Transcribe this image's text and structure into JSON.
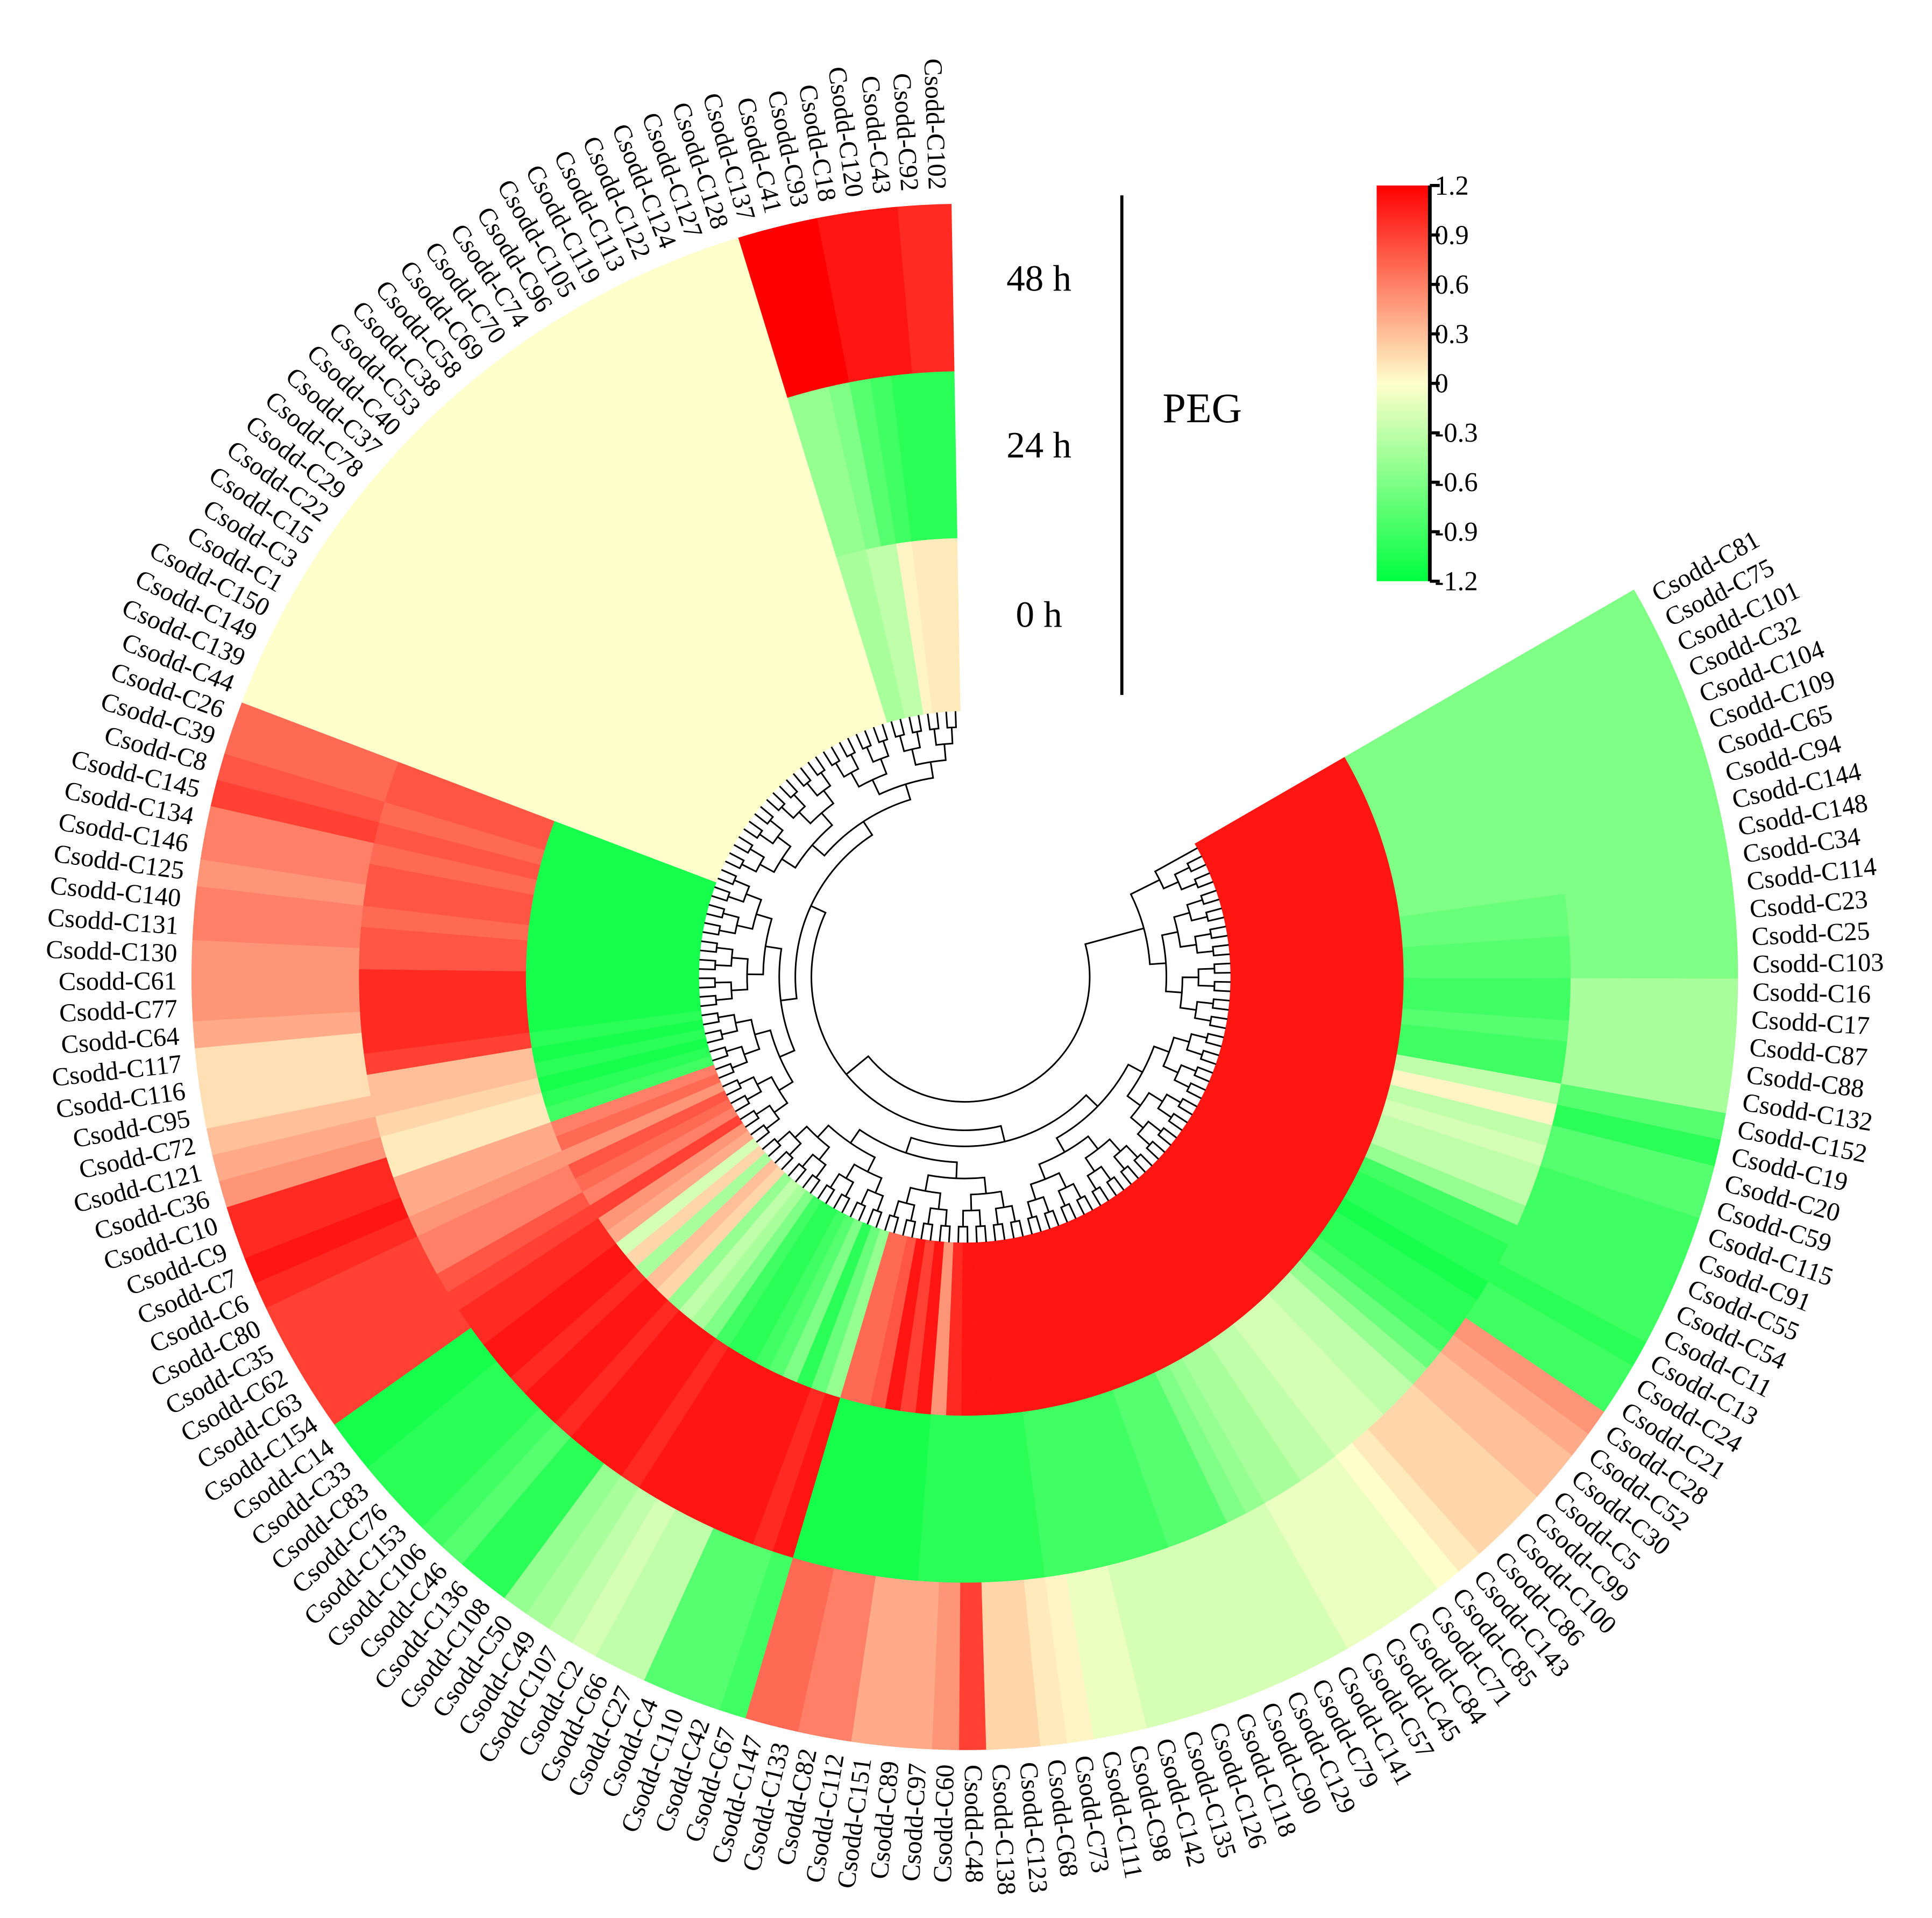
{
  "chart_data": {
    "type": "circular-heatmap",
    "group_label": "PEG",
    "categories": [
      "Csodd-C102",
      "Csodd-C92",
      "Csodd-C43",
      "Csodd-C120",
      "Csodd-C18",
      "Csodd-C93",
      "Csodd-C41",
      "Csodd-C137",
      "Csodd-C128",
      "Csodd-C127",
      "Csodd-C124",
      "Csodd-C122",
      "Csodd-C113",
      "Csodd-C119",
      "Csodd-C105",
      "Csodd-C96",
      "Csodd-C74",
      "Csodd-C70",
      "Csodd-C69",
      "Csodd-C58",
      "Csodd-C38",
      "Csodd-C53",
      "Csodd-C40",
      "Csodd-C37",
      "Csodd-C78",
      "Csodd-C29",
      "Csodd-C22",
      "Csodd-C15",
      "Csodd-C3",
      "Csodd-C1",
      "Csodd-C150",
      "Csodd-C149",
      "Csodd-C139",
      "Csodd-C44",
      "Csodd-C26",
      "Csodd-C39",
      "Csodd-C8",
      "Csodd-C145",
      "Csodd-C134",
      "Csodd-C146",
      "Csodd-C125",
      "Csodd-C140",
      "Csodd-C131",
      "Csodd-C130",
      "Csodd-C61",
      "Csodd-C77",
      "Csodd-C64",
      "Csodd-C117",
      "Csodd-C116",
      "Csodd-C95",
      "Csodd-C72",
      "Csodd-C121",
      "Csodd-C36",
      "Csodd-C10",
      "Csodd-C9",
      "Csodd-C7",
      "Csodd-C6",
      "Csodd-C80",
      "Csodd-C35",
      "Csodd-C62",
      "Csodd-C63",
      "Csodd-C154",
      "Csodd-C14",
      "Csodd-C33",
      "Csodd-C83",
      "Csodd-C76",
      "Csodd-C153",
      "Csodd-C106",
      "Csodd-C46",
      "Csodd-C136",
      "Csodd-C108",
      "Csodd-C50",
      "Csodd-C49",
      "Csodd-C107",
      "Csodd-C2",
      "Csodd-C66",
      "Csodd-C27",
      "Csodd-C4",
      "Csodd-C110",
      "Csodd-C42",
      "Csodd-C67",
      "Csodd-C147",
      "Csodd-C133",
      "Csodd-C82",
      "Csodd-C112",
      "Csodd-C151",
      "Csodd-C89",
      "Csodd-C97",
      "Csodd-C60",
      "Csodd-C48",
      "Csodd-C138",
      "Csodd-C123",
      "Csodd-C68",
      "Csodd-C73",
      "Csodd-C111",
      "Csodd-C98",
      "Csodd-C142",
      "Csodd-C135",
      "Csodd-C126",
      "Csodd-C118",
      "Csodd-C90",
      "Csodd-C129",
      "Csodd-C79",
      "Csodd-C141",
      "Csodd-C57",
      "Csodd-C45",
      "Csodd-C84",
      "Csodd-C71",
      "Csodd-C85",
      "Csodd-C143",
      "Csodd-C86",
      "Csodd-C100",
      "Csodd-C99",
      "Csodd-C5",
      "Csodd-C30",
      "Csodd-C52",
      "Csodd-C28",
      "Csodd-C21",
      "Csodd-C24",
      "Csodd-C13",
      "Csodd-C11",
      "Csodd-C54",
      "Csodd-C55",
      "Csodd-C91",
      "Csodd-C115",
      "Csodd-C59",
      "Csodd-C20",
      "Csodd-C19",
      "Csodd-C152",
      "Csodd-C132",
      "Csodd-C88",
      "Csodd-C87",
      "Csodd-C17",
      "Csodd-C16",
      "Csodd-C103",
      "Csodd-C25",
      "Csodd-C23",
      "Csodd-C114",
      "Csodd-C34",
      "Csodd-C148",
      "Csodd-C144",
      "Csodd-C94",
      "Csodd-C65",
      "Csodd-C109",
      "Csodd-C104",
      "Csodd-C32",
      "Csodd-C101",
      "Csodd-C75",
      "Csodd-C81"
    ],
    "series": [
      {
        "name": "0 h",
        "values": [
          0.1,
          0.1,
          0.1,
          0.05,
          -0.3,
          -0.3,
          -0.4,
          -0.4,
          0,
          0,
          0,
          0,
          0,
          0,
          0,
          0,
          0,
          0,
          0,
          0,
          0,
          0,
          0,
          0,
          0,
          0,
          0,
          0,
          0,
          0,
          0,
          0,
          0,
          0,
          -1.1,
          -1.1,
          -1.1,
          -1.1,
          -1.1,
          -1.1,
          -1.1,
          -1.1,
          -1.1,
          -1.1,
          -1.1,
          -1.1,
          -1.1,
          -1.1,
          -1.0,
          -1.1,
          -1.0,
          -1.1,
          -1.0,
          -0.9,
          0.6,
          0.7,
          0.5,
          0.8,
          0.7,
          0.6,
          0.9,
          0.5,
          0.4,
          -0.2,
          0.2,
          -0.4,
          0.3,
          0.2,
          -0.5,
          -0.3,
          -0.4,
          -0.6,
          -0.9,
          -1.0,
          -1.0,
          -0.9,
          -0.8,
          -0.6,
          -1.0,
          -0.7,
          -0.5,
          0.7,
          0.7,
          0.8,
          1.1,
          0.9,
          1.1,
          0.5,
          1.0,
          1.1,
          1.1,
          1.1,
          1.1,
          1.1,
          1.1,
          1.1,
          1.1,
          1.1,
          1.1,
          1.1,
          1.1,
          1.1,
          1.1,
          1.1,
          1.1,
          1.1,
          1.1,
          1.1,
          1.1,
          1.1,
          1.1,
          1.1,
          1.1,
          1.1,
          1.1,
          1.1,
          1.1,
          1.1,
          1.1,
          1.1,
          1.1,
          1.1,
          1.1,
          1.1,
          1.1,
          1.1,
          1.1,
          1.1,
          1.1,
          1.1,
          1.1,
          1.1,
          1.1,
          1.1,
          1.1,
          1.1,
          1.1,
          1.1,
          1.1,
          1.1,
          1.1,
          1.1,
          1.1,
          1.1,
          1.1,
          1.1,
          1.1,
          1.1,
          1.1
        ]
      },
      {
        "name": "24 h",
        "values": [
          -1.0,
          -1.0,
          -1.0,
          -0.9,
          -0.8,
          -0.6,
          -0.5,
          -0.5,
          0,
          0,
          0,
          0,
          0,
          0,
          0,
          0,
          0,
          0,
          0,
          0,
          0,
          0,
          0,
          0,
          0,
          0,
          0,
          0,
          0,
          0,
          0,
          0,
          0,
          0,
          0.8,
          0.8,
          0.7,
          0.8,
          0.7,
          0.8,
          0.8,
          0.7,
          0.8,
          0.8,
          1.0,
          1.0,
          1.0,
          1.0,
          0.9,
          0.3,
          0.3,
          0.2,
          0.1,
          0.1,
          0.4,
          0.4,
          0.5,
          0.6,
          0.6,
          0.8,
          0.9,
          1.0,
          1.0,
          1.1,
          1.1,
          1.0,
          1.1,
          1.1,
          1.0,
          1.1,
          1.1,
          1.1,
          1.0,
          1.1,
          1.1,
          1.1,
          1.1,
          1.1,
          1.1,
          1.0,
          1.1,
          -1.1,
          -1.1,
          -1.1,
          -1.1,
          -1.1,
          -1.1,
          -1.0,
          -1.0,
          -1.0,
          -1.0,
          -1.0,
          -1.0,
          -0.9,
          -0.9,
          -0.9,
          -0.9,
          -0.9,
          -0.9,
          -0.8,
          -0.8,
          -0.8,
          -0.6,
          -0.5,
          -0.4,
          -0.4,
          -0.3,
          -0.3,
          -0.2,
          -0.2,
          -0.2,
          -0.3,
          -0.3,
          -0.5,
          -0.7,
          -0.9,
          -1.0,
          -1.0,
          -1.1,
          -1.0,
          -1.0,
          -0.9,
          -0.5,
          -0.3,
          -0.3,
          -0.2,
          -0.3,
          0.05,
          -0.3,
          -0.9,
          -0.9,
          -0.8,
          -0.9,
          -0.9,
          -0.8,
          -0.8,
          -0.7,
          -0.7,
          -0.6,
          -0.6,
          -0.6,
          -0.6,
          -0.6,
          -0.6,
          -0.6,
          -0.6,
          -0.6,
          -0.6,
          -0.6
        ]
      },
      {
        "name": "48 h",
        "values": [
          1.0,
          1.0,
          1.1,
          1.1,
          1.1,
          1.2,
          1.2,
          1.2,
          0,
          0,
          0,
          0,
          0,
          0,
          0,
          0,
          0,
          0,
          0,
          0,
          0,
          0,
          0,
          0,
          0,
          0,
          0,
          0,
          0,
          0,
          0,
          0,
          0,
          0,
          0.7,
          0.7,
          0.8,
          0.9,
          0.6,
          0.6,
          0.5,
          0.6,
          0.6,
          0.5,
          0.5,
          0.5,
          0.4,
          0.15,
          0.15,
          0.15,
          0.3,
          0.4,
          0.5,
          1.0,
          1.0,
          1.1,
          1.0,
          0.9,
          0.9,
          0.9,
          0.9,
          0.9,
          -1.1,
          -1.1,
          -1.0,
          -1.0,
          -1.0,
          -0.9,
          -0.8,
          -1.0,
          -1.0,
          -0.5,
          -0.4,
          -0.3,
          -0.2,
          -0.3,
          -0.3,
          -0.8,
          -0.8,
          -0.8,
          -0.9,
          0.7,
          0.7,
          0.6,
          0.6,
          0.4,
          0.4,
          0.4,
          0.5,
          0.9,
          0.2,
          0.2,
          0.1,
          0.05,
          -0.1,
          -0.1,
          -0.2,
          -0.2,
          -0.2,
          -0.2,
          -0.2,
          -0.2,
          -0.2,
          -0.2,
          -0.1,
          -0.1,
          -0.1,
          -0.1,
          0.0,
          0.1,
          0.2,
          0.2,
          0.2,
          0.3,
          0.3,
          0.4,
          0.5,
          -0.9,
          -0.9,
          -1.0,
          -0.9,
          -0.9,
          -0.9,
          -0.9,
          -0.9,
          -0.8,
          -0.8,
          -1.0,
          -0.8,
          -0.4,
          -0.4,
          -0.4,
          -0.4,
          -0.4,
          -0.6,
          -0.6,
          -0.6,
          -0.6,
          -0.6,
          -0.6,
          -0.6,
          -0.6,
          -0.6,
          -0.6,
          -0.6,
          -0.6,
          -0.6,
          -0.6,
          -0.6
        ]
      }
    ],
    "colorscale": {
      "low": "#00ff40",
      "mid": "#ffffcc",
      "high": "#ff0000"
    },
    "clim": [
      -1.2,
      1.2
    ],
    "cticks": [
      1.2,
      0.9,
      0.6,
      0.3,
      0,
      -0.3,
      -0.6,
      -0.9,
      -1.2
    ]
  }
}
